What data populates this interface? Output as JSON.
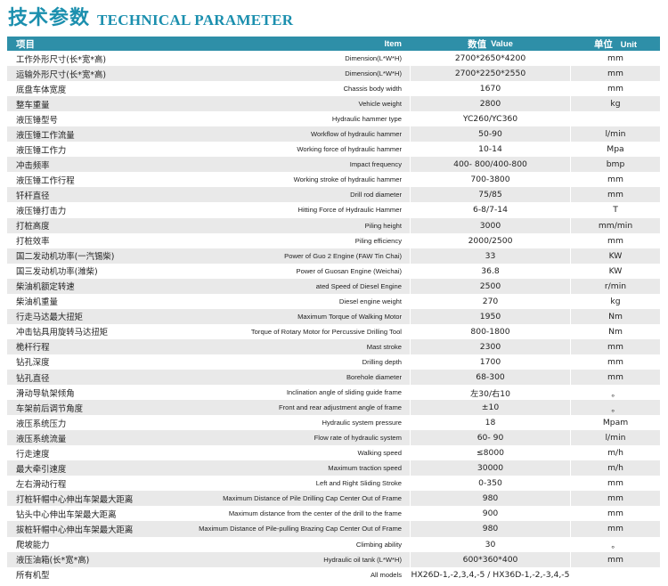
{
  "title": {
    "cn": "技术参数",
    "en": "TECHNICAL PARAMETER"
  },
  "header": {
    "item_cn": "项目",
    "item_en": "Item",
    "value_cn": "数值",
    "value_en": "Value",
    "unit_cn": "单位",
    "unit_en": "Unit"
  },
  "rows": [
    {
      "cn": "工作外形尺寸(长*宽*高)",
      "en": "Dimension(L*W*H)",
      "value": "2700*2650*4200",
      "unit": "mm"
    },
    {
      "cn": "运输外形尺寸(长*宽*高)",
      "en": "Dimension(L*W*H)",
      "value": "2700*2250*2550",
      "unit": "mm"
    },
    {
      "cn": "底盘车体宽度",
      "en": "Chassis body width",
      "value": "1670",
      "unit": "mm"
    },
    {
      "cn": "整车重量",
      "en": "Vehicle weight",
      "value": "2800",
      "unit": "kg"
    },
    {
      "cn": "液压锤型号",
      "en": "Hydraulic hammer type",
      "value": "YC260/YC360",
      "unit": ""
    },
    {
      "cn": "液压锤工作流量",
      "en": "Workflow of hydraulic hammer",
      "value": "50-90",
      "unit": "l/min"
    },
    {
      "cn": "液压锤工作力",
      "en": "Working force of hydraulic hammer",
      "value": "10-14",
      "unit": "Mpa"
    },
    {
      "cn": "冲击频率",
      "en": "Impact frequency",
      "value": "400- 800/400-800",
      "unit": "bmp"
    },
    {
      "cn": "液压锤工作行程",
      "en": "Working stroke of hydraulic hammer",
      "value": "700-3800",
      "unit": "mm"
    },
    {
      "cn": "钎杆直径",
      "en": "Drill rod diameter",
      "value": "75/85",
      "unit": "mm"
    },
    {
      "cn": "液压锤打击力",
      "en": "Hitting Force of Hydraulic Hammer",
      "value": "6-8/7-14",
      "unit": "T"
    },
    {
      "cn": "打桩高度",
      "en": "Piling height",
      "value": "3000",
      "unit": "mm/min"
    },
    {
      "cn": "打桩效率",
      "en": "Piling efficiency",
      "value": "2000/2500",
      "unit": "mm"
    },
    {
      "cn": "国二发动机功率(一汽锡柴)",
      "en": "Power of Guo 2 Engine (FAW Tin Chai)",
      "value": "33",
      "unit": "KW"
    },
    {
      "cn": "国三发动机功率(潍柴)",
      "en": "Power of Guosan Engine (Weichai)",
      "value": "36.8",
      "unit": "KW"
    },
    {
      "cn": "柴油机额定转速",
      "en": "ated Speed of Diesel Engine",
      "value": "2500",
      "unit": "r/min"
    },
    {
      "cn": "柴油机重量",
      "en": "Diesel engine weight",
      "value": "270",
      "unit": "kg"
    },
    {
      "cn": "行走马达最大扭矩",
      "en": "Maximum Torque of Walking Motor",
      "value": "1950",
      "unit": "Nm"
    },
    {
      "cn": "冲击钻具用旋转马达扭矩",
      "en": "Torque of Rotary Motor for Percussive Drilling Tool",
      "value": "800-1800",
      "unit": "Nm"
    },
    {
      "cn": "桅杆行程",
      "en": "Mast stroke",
      "value": "2300",
      "unit": "mm"
    },
    {
      "cn": "钻孔深度",
      "en": "Drilling depth",
      "value": "1700",
      "unit": "mm"
    },
    {
      "cn": "钻孔直径",
      "en": "Borehole diameter",
      "value": "68-300",
      "unit": "mm"
    },
    {
      "cn": "滑动导轨架倾角",
      "en": "Inclination angle of sliding guide frame",
      "value": "左30/右10",
      "unit": "。"
    },
    {
      "cn": "车架前后调节角度",
      "en": "Front and rear adjustment angle of frame",
      "value": "±10",
      "unit": "。"
    },
    {
      "cn": "液压系统压力",
      "en": "Hydraulic system pressure",
      "value": "18",
      "unit": "Mpam"
    },
    {
      "cn": "液压系统流量",
      "en": "Flow rate of hydraulic system",
      "value": "60- 90",
      "unit": "l/min"
    },
    {
      "cn": "行走速度",
      "en": "Walking speed",
      "value": "≤8000",
      "unit": "m/h"
    },
    {
      "cn": "最大牵引速度",
      "en": "Maximum traction speed",
      "value": "30000",
      "unit": "m/h"
    },
    {
      "cn": "左右滑动行程",
      "en": "Left and Right Sliding Stroke",
      "value": "0-350",
      "unit": "mm"
    },
    {
      "cn": "打桩轩帽中心伸出车架最大距离",
      "en": "Maximum Distance of Pile Drilling Cap Center Out of Frame",
      "value": "980",
      "unit": "mm"
    },
    {
      "cn": "钻头中心伸出车架最大距离",
      "en": "Maximum distance from the center of the drill to the frame",
      "value": "900",
      "unit": "mm"
    },
    {
      "cn": "拔桩轩帽中心伸出车架最大距离",
      "en": "Maximum Distance of Pile-pulling Brazing Cap Center Out of Frame",
      "value": "980",
      "unit": "mm"
    },
    {
      "cn": "爬坡能力",
      "en": "Climbing ability",
      "value": "30",
      "unit": "。"
    },
    {
      "cn": "液压油箱(长*宽*高)",
      "en": "Hydraulic oil tank (L*W*H)",
      "value": "600*360*400",
      "unit": "mm"
    },
    {
      "cn": "所有机型",
      "en": "All models",
      "value": "HX26D-1,-2,3,4,-5 / HX36D-1,-2,-3,4,-5",
      "unit": ""
    }
  ],
  "colors": {
    "accent": "#1b8fae",
    "header_bg": "#2e8fa8",
    "stripe": "#e9e9e9"
  }
}
